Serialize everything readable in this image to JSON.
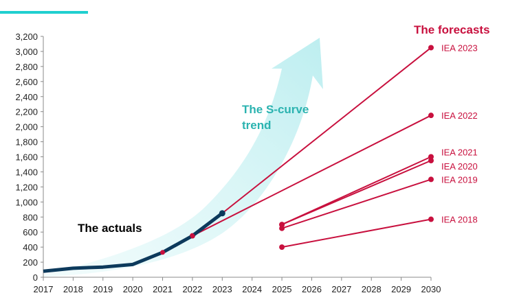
{
  "chart_data": {
    "type": "line",
    "title": "",
    "xlabel": "",
    "ylabel": "",
    "ylim": [
      0,
      3200
    ],
    "yticks": [
      "0",
      "200",
      "400",
      "600",
      "800",
      "1,000",
      "1,200",
      "1,400",
      "1,600",
      "1,800",
      "2,000",
      "2,200",
      "2,400",
      "2,600",
      "2,800",
      "3,000",
      "3,200"
    ],
    "xticks": [
      "2017",
      "2018",
      "2019",
      "2020",
      "2021",
      "2022",
      "2023",
      "2024",
      "2025",
      "2026",
      "2027",
      "2028",
      "2029",
      "2030"
    ],
    "series": [
      {
        "name": "The actuals",
        "x": [
          2017,
          2018,
          2019,
          2020,
          2021,
          2022,
          2023
        ],
        "values": [
          80,
          120,
          135,
          170,
          330,
          550,
          850
        ]
      },
      {
        "name": "IEA 2023",
        "x": [
          2023,
          2030
        ],
        "values": [
          850,
          3050
        ]
      },
      {
        "name": "IEA 2022",
        "x": [
          2022,
          2030
        ],
        "values": [
          550,
          2150
        ]
      },
      {
        "name": "IEA 2021",
        "x": [
          2025,
          2030
        ],
        "values": [
          700,
          1600
        ]
      },
      {
        "name": "IEA 2020",
        "x": [
          2025,
          2030
        ],
        "values": [
          700,
          1550
        ]
      },
      {
        "name": "IEA 2019",
        "x": [
          2025,
          2030
        ],
        "values": [
          650,
          1300
        ]
      },
      {
        "name": "IEA 2018",
        "x": [
          2025,
          2030
        ],
        "values": [
          400,
          770
        ]
      }
    ],
    "annotations": {
      "actuals": "The actuals",
      "forecasts": "The forecasts",
      "trend_line1": "The S-curve",
      "trend_line2": "trend"
    },
    "colors": {
      "actuals": "#0d3a5c",
      "forecast": "#c8103e",
      "trend": "#2bb3b0",
      "accent_bar": "#1fcfcf"
    }
  }
}
